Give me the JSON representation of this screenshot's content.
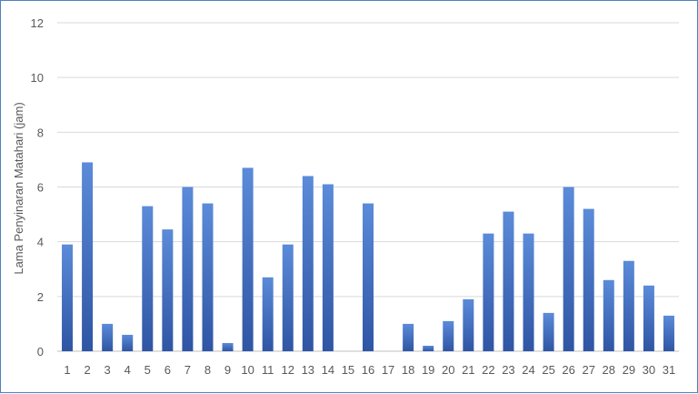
{
  "chart_data": {
    "type": "bar",
    "title": "",
    "xlabel": "",
    "ylabel": "Lama Penyinaran Matahari (jam)",
    "ylim": [
      0,
      12
    ],
    "yticks": [
      0,
      2,
      4,
      6,
      8,
      10,
      12
    ],
    "grid": true,
    "bar_color": "#4472c4",
    "bar_color_dark": "#2f55a4",
    "categories": [
      "1",
      "2",
      "3",
      "4",
      "5",
      "6",
      "7",
      "8",
      "9",
      "10",
      "11",
      "12",
      "13",
      "14",
      "15",
      "16",
      "17",
      "18",
      "19",
      "20",
      "21",
      "22",
      "23",
      "24",
      "25",
      "26",
      "27",
      "28",
      "29",
      "30",
      "31"
    ],
    "values": [
      3.9,
      6.9,
      1.0,
      0.6,
      5.3,
      4.45,
      6.0,
      5.4,
      0.3,
      6.7,
      2.7,
      3.9,
      6.4,
      6.1,
      0,
      5.4,
      0,
      1.0,
      0.2,
      1.1,
      1.9,
      4.3,
      5.1,
      4.3,
      1.4,
      6.0,
      5.2,
      2.6,
      3.3,
      2.4,
      1.3
    ]
  }
}
